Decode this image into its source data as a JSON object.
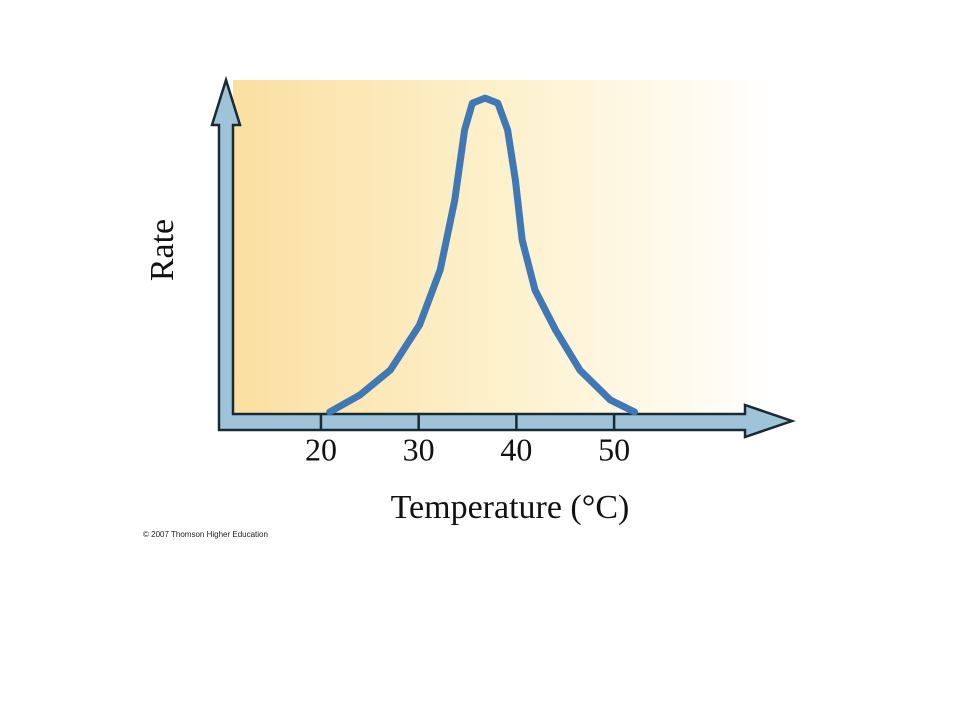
{
  "chart_data": {
    "type": "line",
    "x_label": "Temperature (°C)",
    "y_label": "Rate",
    "credit": "© 2007 Thomson Higher Education",
    "x": [
      20.9,
      24.0,
      27.1,
      30.1,
      32.2,
      33.7,
      34.7,
      35.5,
      36.8,
      38.1,
      39.1,
      39.9,
      40.6,
      41.9,
      44.0,
      46.5,
      49.6,
      52.1
    ],
    "values": [
      0.9,
      6.0,
      13.4,
      26.9,
      43.3,
      64.2,
      85.1,
      93.1,
      94.6,
      93.1,
      85.1,
      70.1,
      52.2,
      37.3,
      25.4,
      13.4,
      4.5,
      0.9
    ],
    "color": "#3f78b4",
    "xlim": [
      11,
      68
    ],
    "ylim": [
      0,
      100
    ],
    "xticks": [
      20,
      30,
      40,
      50
    ],
    "grid": false
  }
}
